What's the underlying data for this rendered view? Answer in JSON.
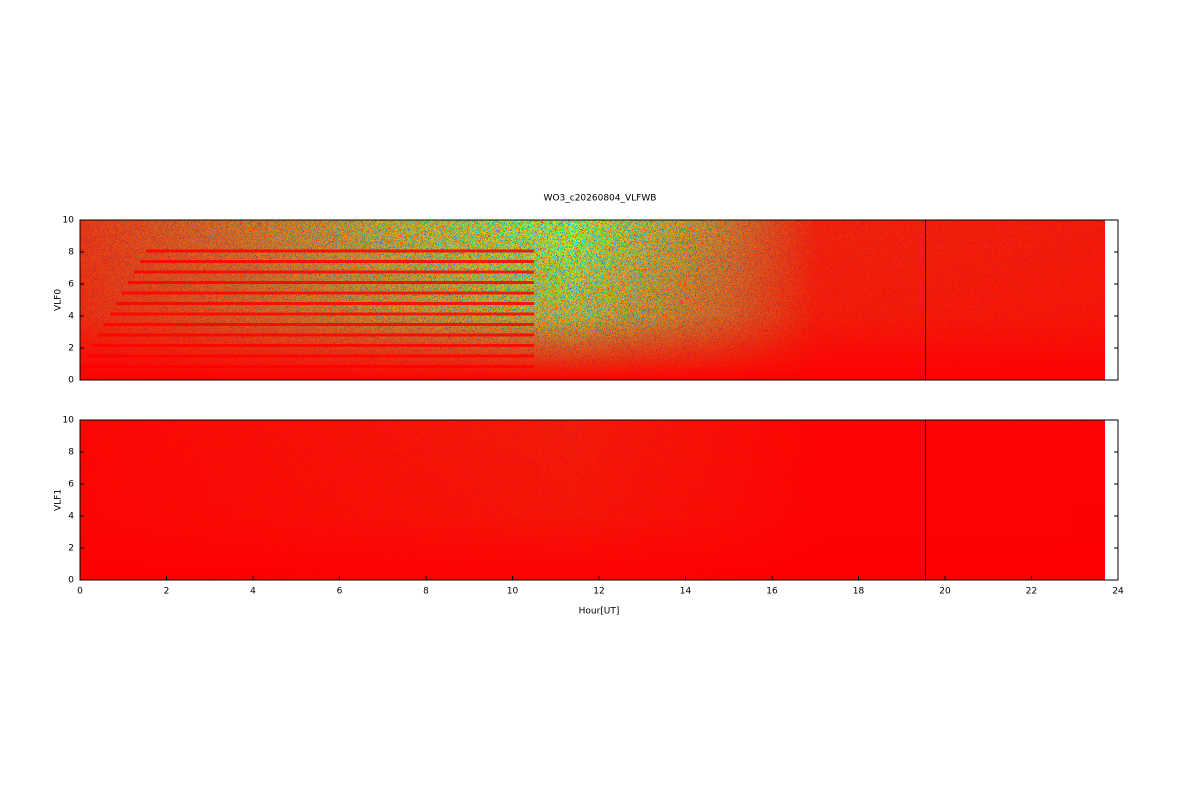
{
  "chart_data": [
    {
      "type": "heatmap",
      "title": "WO3_c20260804_VLFWB",
      "ylabel": "VLF0",
      "xlim": [
        0,
        24
      ],
      "ylim": [
        0,
        10
      ],
      "yticks": [
        0,
        2,
        4,
        6,
        8,
        10
      ],
      "data_range": [
        0,
        23.7
      ],
      "vline": 19.55,
      "color": "#ff0000"
    },
    {
      "type": "heatmap",
      "ylabel": "VLF1",
      "xlabel": "Hour[UT]",
      "xlim": [
        0,
        24
      ],
      "ylim": [
        0,
        10
      ],
      "yticks": [
        0,
        2,
        4,
        6,
        8,
        10
      ],
      "xticks": [
        0,
        2,
        4,
        6,
        8,
        10,
        12,
        14,
        16,
        18,
        20,
        22,
        24
      ],
      "data_range": [
        0,
        23.7
      ],
      "vline": 19.55,
      "color": "#ff0000"
    }
  ]
}
